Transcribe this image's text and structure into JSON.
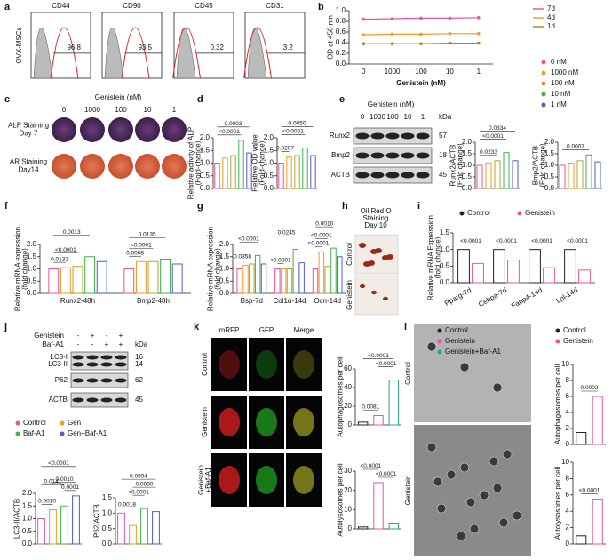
{
  "panel_labels": [
    "a",
    "b",
    "c",
    "d",
    "e",
    "f",
    "g",
    "h",
    "i",
    "j",
    "k",
    "l"
  ],
  "flow": {
    "row_label": "OVX-MSCs",
    "plots": [
      {
        "title": "CD44",
        "value": 96.8
      },
      {
        "title": "CD90",
        "value": 93.5
      },
      {
        "title": "CD45",
        "value": 0.32
      },
      {
        "title": "CD31",
        "value": 3.2
      }
    ]
  },
  "dose_legend": [
    {
      "name": "0 nM",
      "color": "#e8559a"
    },
    {
      "name": "1000 nM",
      "color": "#f59a23"
    },
    {
      "name": "100 nM",
      "color": "#b0a52a"
    },
    {
      "name": "10 nM",
      "color": "#3cb44b"
    },
    {
      "name": "1 nM",
      "color": "#4f5bd5"
    }
  ],
  "staining": {
    "title": "Genistein (nM)",
    "doses": [
      "0",
      "1000",
      "100",
      "10",
      "1"
    ],
    "rows": [
      [
        "ALP Staining",
        "Day 7"
      ],
      [
        "AR Staining",
        "Day14"
      ]
    ]
  },
  "blot_e": {
    "title": "Genistein (nM)",
    "doses": [
      "0",
      "1000",
      "100",
      "10",
      "1"
    ],
    "unit": "kDa",
    "rows": [
      {
        "name": "Runx2",
        "kda": 57
      },
      {
        "name": "Bmp2",
        "kda": 18
      },
      {
        "name": "ACTB",
        "kda": 45
      }
    ]
  },
  "oil_red": {
    "title": [
      "Oil Red O",
      "Staining",
      "Day 10"
    ],
    "rows": [
      "Control",
      "Genistein"
    ]
  },
  "blot_j": {
    "treatments": [
      {
        "name": "Genistein",
        "signs": [
          "-",
          "+",
          "-",
          "+"
        ]
      },
      {
        "name": "Baf-A1",
        "signs": [
          "-",
          "-",
          "+",
          "+"
        ]
      }
    ],
    "unit": "kDa",
    "rows": [
      {
        "name": "LC3-I",
        "kda": 16
      },
      {
        "name": "LC3-II",
        "kda": 14
      },
      {
        "name": "P62",
        "kda": 62
      },
      {
        "name": "ACTB",
        "kda": 45
      }
    ]
  },
  "k_images": {
    "columns": [
      "mRFP",
      "GFP",
      "Merge"
    ],
    "rows": [
      [
        "Control"
      ],
      [
        "Genistein"
      ],
      [
        "Genistein",
        "+Baf-A1"
      ]
    ]
  },
  "l_images": {
    "rows": [
      "Control",
      "Genistein"
    ]
  },
  "chart_data": [
    {
      "type": "line",
      "ylabel": "OD at 450 nm",
      "xlabel": "Genistein (nM)",
      "categories": [
        "0",
        "1000",
        "100",
        "10",
        "1"
      ],
      "ylim": [
        0,
        1.0
      ],
      "yticks": [
        {
          "value": 0,
          "label": "0.0"
        },
        0.2,
        0.4,
        0.6,
        0.8,
        {
          "value": 1.0,
          "label": "1.0"
        }
      ],
      "series": [
        {
          "name": "7d",
          "color": "#e8559a",
          "values": [
            0.84,
            0.85,
            0.86,
            0.86,
            0.87
          ]
        },
        {
          "name": "4d",
          "color": "#f59a23",
          "values": [
            0.55,
            0.56,
            0.56,
            0.57,
            0.57
          ]
        },
        {
          "name": "1d",
          "color": "#9b8f1a",
          "values": [
            0.38,
            0.38,
            0.38,
            0.39,
            0.39
          ]
        }
      ]
    },
    {
      "type": "bar",
      "ylabel": [
        "Relative activity of ALP",
        "(Fold-change)"
      ],
      "ylim": [
        0,
        2.0
      ],
      "yticks": [
        {
          "value": 0,
          "label": "0.0"
        },
        0.5,
        {
          "value": 1,
          "label": "1.0"
        },
        1.5,
        {
          "value": 2,
          "label": "2.0"
        }
      ],
      "values": [
        1.0,
        1.2,
        1.3,
        1.9,
        1.4
      ],
      "colors": [
        "#e8559a",
        "#f59a23",
        "#b0a52a",
        "#3cb44b",
        "#4f5bd5"
      ],
      "pvalues": [
        "0.0003",
        "<0.0001"
      ]
    },
    {
      "type": "bar",
      "ylabel": [
        "Relative OD value",
        "(Fold-change)"
      ],
      "ylim": [
        0,
        2.0
      ],
      "yticks": [
        {
          "value": 0,
          "label": "0.0"
        },
        0.5,
        {
          "value": 1,
          "label": "1.0"
        },
        1.5,
        {
          "value": 2,
          "label": "2.0"
        }
      ],
      "values": [
        1.0,
        1.25,
        1.3,
        1.6,
        1.3
      ],
      "colors": [
        "#e8559a",
        "#f59a23",
        "#b0a52a",
        "#3cb44b",
        "#4f5bd5"
      ],
      "pvalues": [
        "0.0050",
        "<0.0001",
        "0.0207"
      ]
    },
    {
      "type": "bar",
      "ylabel": [
        "Runx2/ACTB",
        "(Fold change)"
      ],
      "ylim": [
        0,
        2.0
      ],
      "yticks": [
        {
          "value": 0,
          "label": "0.0"
        },
        0.5,
        {
          "value": 1,
          "label": "1.0"
        },
        1.5,
        {
          "value": 2,
          "label": "2.0"
        }
      ],
      "values": [
        1.0,
        1.1,
        1.2,
        1.55,
        1.2
      ],
      "colors": [
        "#e8559a",
        "#f59a23",
        "#b0a52a",
        "#3cb44b",
        "#4f5bd5"
      ],
      "pvalues": [
        "0.0334",
        "<0.0001",
        "0.0233"
      ]
    },
    {
      "type": "bar",
      "ylabel": [
        "Bmp2/ACTB",
        "(Fold change)"
      ],
      "ylim": [
        0,
        2.0
      ],
      "yticks": [
        {
          "value": 0,
          "label": "0.0"
        },
        0.5,
        {
          "value": 1,
          "label": "1.0"
        },
        1.5,
        {
          "value": 2,
          "label": "2.0"
        }
      ],
      "values": [
        1.0,
        1.1,
        1.2,
        1.45,
        1.15
      ],
      "colors": [
        "#e8559a",
        "#f59a23",
        "#b0a52a",
        "#3cb44b",
        "#4f5bd5"
      ],
      "pvalues": [
        "0.0007"
      ]
    },
    {
      "type": "bar",
      "ylabel": [
        "Relative mRNA expression",
        "(fold change)"
      ],
      "ylim": [
        0,
        2.0
      ],
      "yticks": [
        {
          "value": 0,
          "label": "0.0"
        },
        0.5,
        {
          "value": 1,
          "label": "1.0"
        },
        1.5,
        {
          "value": 2,
          "label": "2.0"
        }
      ],
      "categories": [
        "Runx2-48h",
        "Bmp2-48h"
      ],
      "series": [
        {
          "color": "#e8559a",
          "values": [
            1.0,
            1.0
          ]
        },
        {
          "color": "#f59a23",
          "values": [
            1.05,
            1.3
          ]
        },
        {
          "color": "#b0a52a",
          "values": [
            1.1,
            1.3
          ]
        },
        {
          "color": "#3cb44b",
          "values": [
            1.5,
            1.4
          ]
        },
        {
          "color": "#4f5bd5",
          "values": [
            1.3,
            1.2
          ]
        }
      ],
      "pvalues": [
        "0.0013",
        "<0.0001",
        "0.0133",
        "0.0135",
        "<0.0001",
        "0.0008"
      ]
    },
    {
      "type": "bar",
      "ylabel": [
        "Relative mRNA expression",
        "(fold change)"
      ],
      "ylim": [
        0,
        2.0
      ],
      "yticks": [
        {
          "value": 0,
          "label": "0.0"
        },
        0.5,
        {
          "value": 1,
          "label": "1.0"
        },
        1.5,
        {
          "value": 2,
          "label": "2.0"
        }
      ],
      "categories": [
        "Bsp-7d",
        "Col1α-14d",
        "Ocn-14d"
      ],
      "series": [
        {
          "color": "#e8559a",
          "values": [
            1.0,
            1.0,
            1.0
          ]
        },
        {
          "color": "#f59a23",
          "values": [
            1.15,
            1.0,
            1.7
          ]
        },
        {
          "color": "#b0a52a",
          "values": [
            1.2,
            1.0,
            1.1
          ]
        },
        {
          "color": "#3cb44b",
          "values": [
            1.55,
            1.8,
            1.85
          ]
        },
        {
          "color": "#4f5bd5",
          "values": [
            1.2,
            1.25,
            1.5
          ]
        }
      ],
      "pvalues": [
        "<0.0001",
        "0.0358",
        "0.0245",
        "<0.0001",
        "0.0010",
        "<0.0001",
        "<0.0001"
      ]
    },
    {
      "type": "bar",
      "ylabel": [
        "Relative mRNA Expression",
        "(fold change)"
      ],
      "ylim": [
        0,
        1.5
      ],
      "yticks": [
        {
          "value": 0,
          "label": "0.0"
        },
        0.5,
        {
          "value": 1,
          "label": "1.0"
        },
        1.5
      ],
      "categories": [
        "Pparg-7d",
        "Cebpa-7d",
        "Fabp4-14d",
        "Lpl-14d"
      ],
      "series": [
        {
          "name": "Control",
          "color": "#222222",
          "values": [
            1.0,
            1.0,
            1.0,
            1.0
          ]
        },
        {
          "name": "Genistein",
          "color": "#e8559a",
          "values": [
            0.58,
            0.68,
            0.45,
            0.38
          ]
        }
      ],
      "pvalues": [
        "<0.0001",
        "<0.0001",
        "<0.0001",
        "<0.0001"
      ]
    },
    {
      "type": "bar",
      "ylabel": "LC3-II/ACTB",
      "ylim": [
        0,
        2.0
      ],
      "yticks": [
        {
          "value": 0,
          "label": "0.0"
        },
        0.5,
        {
          "value": 1,
          "label": "1.0"
        },
        1.5,
        {
          "value": 2,
          "label": "2.0"
        }
      ],
      "categories": [
        "Control",
        "Gen",
        "Baf-A1",
        "Gen+Baf-A1"
      ],
      "values": [
        1.0,
        1.35,
        1.5,
        1.9
      ],
      "colors": [
        "#e8559a",
        "#f59a23",
        "#3cb44b",
        "#4f5bd5"
      ],
      "pvalues": [
        "<0.0001",
        "0.0141",
        "0.0010",
        "0.0010",
        "0.0001"
      ]
    },
    {
      "type": "bar",
      "ylabel": "P62/ACTB",
      "ylim": [
        0,
        1.5
      ],
      "yticks": [
        {
          "value": 0,
          "label": "0.0"
        },
        0.5,
        {
          "value": 1,
          "label": "1.0"
        },
        1.5
      ],
      "values": [
        1.0,
        0.6,
        1.15,
        1.05
      ],
      "colors": [
        "#e8559a",
        "#f59a23",
        "#3cb44b",
        "#4f5bd5"
      ],
      "pvalues": [
        "0.0094",
        "0.0080",
        "<0.0001",
        "0.0018"
      ]
    },
    {
      "type": "bar",
      "ylabel": "Autophagosomes per cell",
      "ylim": [
        0,
        60
      ],
      "yticks": [
        0,
        20,
        40,
        60
      ],
      "categories": [
        "Control",
        "Genistein",
        "Genistein+Baf-A1"
      ],
      "values": [
        3,
        10,
        48
      ],
      "colors": [
        "#222222",
        "#e8559a",
        "#2aa198"
      ],
      "pvalues": [
        "<0.0001",
        "0.0081",
        "<0.0001"
      ]
    },
    {
      "type": "bar",
      "ylabel": "Autolysosomes per cell",
      "ylim": [
        0,
        30
      ],
      "yticks": [
        0,
        10,
        20,
        30
      ],
      "values": [
        1,
        24,
        3
      ],
      "colors": [
        "#222222",
        "#e8559a",
        "#2aa198"
      ],
      "pvalues": [
        "<0.0001",
        "<0.0001"
      ]
    },
    {
      "type": "bar",
      "ylabel": "Autophagosomes per cell",
      "ylim": [
        0,
        10
      ],
      "yticks": [
        0,
        2,
        4,
        6,
        8,
        10
      ],
      "categories": [
        "Control",
        "Genistein"
      ],
      "values": [
        1.5,
        6
      ],
      "colors": [
        "#222222",
        "#e8559a"
      ],
      "pvalues": [
        "0.0002"
      ]
    },
    {
      "type": "bar",
      "ylabel": "Autolysosomes per cell",
      "ylim": [
        0,
        10
      ],
      "yticks": [
        0,
        2,
        4,
        6,
        8,
        10
      ],
      "values": [
        1,
        5.5
      ],
      "colors": [
        "#222222",
        "#e8559a"
      ],
      "pvalues": [
        "<0.0001"
      ]
    }
  ]
}
